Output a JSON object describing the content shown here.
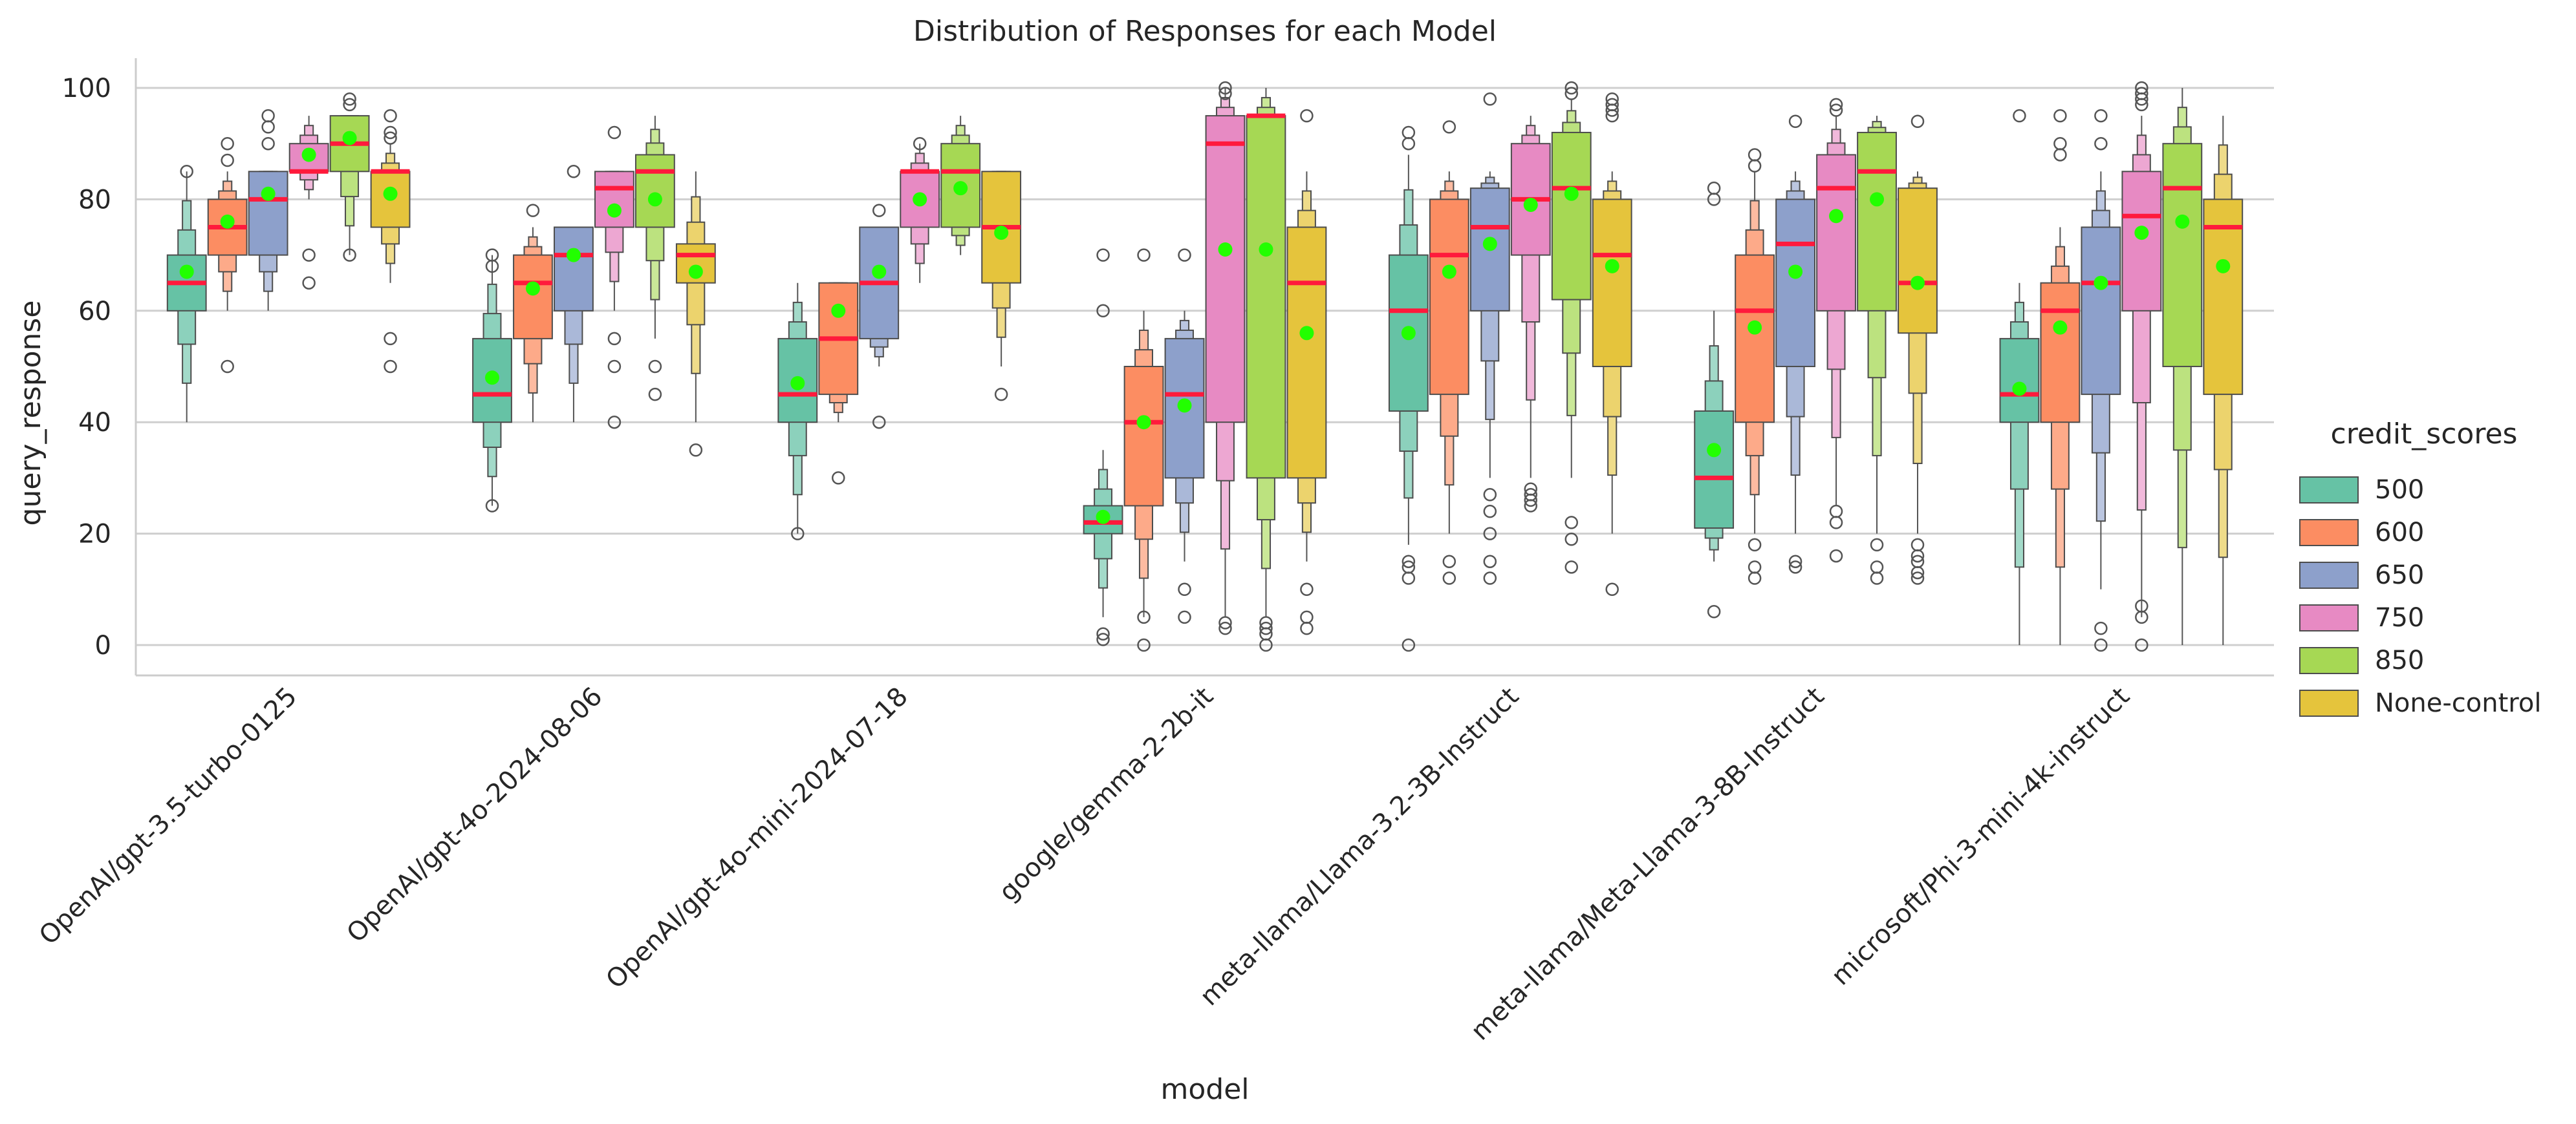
{
  "chart_data": {
    "type": "boxen",
    "title": "Distribution of Responses for each Model",
    "xlabel": "model",
    "ylabel": "query_response",
    "ylim": [
      -5,
      105
    ],
    "yticks": [
      0,
      20,
      40,
      60,
      80,
      100
    ],
    "grid": "horizontal",
    "categories": [
      "OpenAI/gpt-3.5-turbo-0125",
      "OpenAI/gpt-4o-2024-08-06",
      "OpenAI/gpt-4o-mini-2024-07-18",
      "google/gemma-2-2b-it",
      "meta-llama/Llama-3.2-3B-Instruct",
      "meta-llama/Meta-Llama-3-8B-Instruct",
      "microsoft/Phi-3-mini-4k-instruct"
    ],
    "legend": {
      "title": "credit_scores",
      "placement": "right"
    },
    "median_color": "#ff1a3c",
    "mean_color": "#22ff00",
    "series": [
      {
        "name": "500",
        "color": "#66c2a5",
        "stats": [
          {
            "min": 40,
            "q1": 60,
            "median": 65,
            "q3": 70,
            "max": 85,
            "mean": 67,
            "outliers": [
              85
            ]
          },
          {
            "min": 25,
            "q1": 40,
            "median": 45,
            "q3": 55,
            "max": 70,
            "mean": 48,
            "outliers": [
              25,
              68,
              70
            ]
          },
          {
            "min": 20,
            "q1": 40,
            "median": 45,
            "q3": 55,
            "max": 65,
            "mean": 47,
            "outliers": [
              20
            ]
          },
          {
            "min": 5,
            "q1": 20,
            "median": 22,
            "q3": 25,
            "max": 35,
            "mean": 23,
            "outliers": [
              1,
              2,
              60,
              70
            ]
          },
          {
            "min": 18,
            "q1": 42,
            "median": 60,
            "q3": 70,
            "max": 88,
            "mean": 56,
            "outliers": [
              0,
              12,
              14,
              15,
              90,
              92
            ]
          },
          {
            "min": 15,
            "q1": 21,
            "median": 30,
            "q3": 42,
            "max": 60,
            "mean": 35,
            "outliers": [
              6,
              80,
              82
            ]
          },
          {
            "min": 0,
            "q1": 40,
            "median": 45,
            "q3": 55,
            "max": 65,
            "mean": 46,
            "outliers": [
              95
            ]
          }
        ]
      },
      {
        "name": "600",
        "color": "#fc8d62",
        "stats": [
          {
            "min": 60,
            "q1": 70,
            "median": 75,
            "q3": 80,
            "max": 85,
            "mean": 76,
            "outliers": [
              50,
              87,
              90
            ]
          },
          {
            "min": 40,
            "q1": 55,
            "median": 65,
            "q3": 70,
            "max": 75,
            "mean": 64,
            "outliers": [
              78
            ]
          },
          {
            "min": 40,
            "q1": 45,
            "median": 55,
            "q3": 65,
            "max": 65,
            "mean": 60,
            "outliers": [
              30
            ]
          },
          {
            "min": 5,
            "q1": 25,
            "median": 40,
            "q3": 50,
            "max": 60,
            "mean": 40,
            "outliers": [
              0,
              5,
              70
            ]
          },
          {
            "min": 20,
            "q1": 45,
            "median": 70,
            "q3": 80,
            "max": 85,
            "mean": 67,
            "outliers": [
              12,
              15,
              93
            ]
          },
          {
            "min": 20,
            "q1": 40,
            "median": 60,
            "q3": 70,
            "max": 85,
            "mean": 57,
            "outliers": [
              12,
              14,
              18,
              86,
              88
            ]
          },
          {
            "min": 0,
            "q1": 40,
            "median": 60,
            "q3": 65,
            "max": 75,
            "mean": 57,
            "outliers": [
              88,
              90,
              95
            ]
          }
        ]
      },
      {
        "name": "650",
        "color": "#8da0cb",
        "stats": [
          {
            "min": 60,
            "q1": 70,
            "median": 80,
            "q3": 85,
            "max": 85,
            "mean": 81,
            "outliers": [
              90,
              93,
              95
            ]
          },
          {
            "min": 40,
            "q1": 60,
            "median": 70,
            "q3": 75,
            "max": 75,
            "mean": 70,
            "outliers": [
              85
            ]
          },
          {
            "min": 50,
            "q1": 55,
            "median": 65,
            "q3": 75,
            "max": 75,
            "mean": 67,
            "outliers": [
              40,
              78
            ]
          },
          {
            "min": 15,
            "q1": 30,
            "median": 45,
            "q3": 55,
            "max": 60,
            "mean": 43,
            "outliers": [
              5,
              10,
              70
            ]
          },
          {
            "min": 30,
            "q1": 60,
            "median": 75,
            "q3": 82,
            "max": 85,
            "mean": 72,
            "outliers": [
              12,
              15,
              20,
              24,
              27,
              98
            ]
          },
          {
            "min": 20,
            "q1": 50,
            "median": 72,
            "q3": 80,
            "max": 85,
            "mean": 67,
            "outliers": [
              14,
              15,
              94
            ]
          },
          {
            "min": 10,
            "q1": 45,
            "median": 65,
            "q3": 75,
            "max": 85,
            "mean": 65,
            "outliers": [
              0,
              3,
              90,
              95
            ]
          }
        ]
      },
      {
        "name": "750",
        "color": "#e78ac3",
        "stats": [
          {
            "min": 80,
            "q1": 85,
            "median": 85,
            "q3": 90,
            "max": 95,
            "mean": 88,
            "outliers": [
              65,
              70
            ]
          },
          {
            "min": 60,
            "q1": 75,
            "median": 82,
            "q3": 85,
            "max": 85,
            "mean": 78,
            "outliers": [
              40,
              50,
              55,
              92
            ]
          },
          {
            "min": 65,
            "q1": 75,
            "median": 85,
            "q3": 85,
            "max": 90,
            "mean": 80,
            "outliers": [
              90
            ]
          },
          {
            "min": 5,
            "q1": 40,
            "median": 90,
            "q3": 95,
            "max": 100,
            "mean": 71,
            "outliers": [
              3,
              4,
              99,
              100
            ]
          },
          {
            "min": 30,
            "q1": 70,
            "median": 80,
            "q3": 90,
            "max": 95,
            "mean": 79,
            "outliers": [
              25,
              26,
              27,
              28
            ]
          },
          {
            "min": 25,
            "q1": 60,
            "median": 82,
            "q3": 88,
            "max": 95,
            "mean": 77,
            "outliers": [
              16,
              22,
              24,
              96,
              97
            ]
          },
          {
            "min": 5,
            "q1": 60,
            "median": 77,
            "q3": 85,
            "max": 95,
            "mean": 74,
            "outliers": [
              0,
              5,
              7,
              97,
              98,
              99,
              100
            ]
          }
        ]
      },
      {
        "name": "850",
        "color": "#a6d854",
        "stats": [
          {
            "min": 70,
            "q1": 85,
            "median": 90,
            "q3": 95,
            "max": 95,
            "mean": 91,
            "outliers": [
              70,
              97,
              98
            ]
          },
          {
            "min": 55,
            "q1": 75,
            "median": 85,
            "q3": 88,
            "max": 95,
            "mean": 80,
            "outliers": [
              45,
              50
            ]
          },
          {
            "min": 70,
            "q1": 75,
            "median": 85,
            "q3": 90,
            "max": 95,
            "mean": 82,
            "outliers": []
          },
          {
            "min": 5,
            "q1": 30,
            "median": 95,
            "q3": 95,
            "max": 100,
            "mean": 71,
            "outliers": [
              0,
              2,
              3,
              4
            ]
          },
          {
            "min": 30,
            "q1": 62,
            "median": 82,
            "q3": 92,
            "max": 98,
            "mean": 81,
            "outliers": [
              14,
              19,
              22,
              99,
              100
            ]
          },
          {
            "min": 20,
            "q1": 60,
            "median": 85,
            "q3": 92,
            "max": 95,
            "mean": 80,
            "outliers": [
              12,
              14,
              18
            ]
          },
          {
            "min": 0,
            "q1": 50,
            "median": 82,
            "q3": 90,
            "max": 100,
            "mean": 76,
            "outliers": []
          }
        ]
      },
      {
        "name": "None-control",
        "color": "#e5c43c",
        "stats": [
          {
            "min": 65,
            "q1": 75,
            "median": 85,
            "q3": 85,
            "max": 90,
            "mean": 81,
            "outliers": [
              50,
              55,
              91,
              92,
              95
            ]
          },
          {
            "min": 40,
            "q1": 65,
            "median": 70,
            "q3": 72,
            "max": 85,
            "mean": 67,
            "outliers": [
              35
            ]
          },
          {
            "min": 50,
            "q1": 65,
            "median": 75,
            "q3": 85,
            "max": 85,
            "mean": 74,
            "outliers": [
              45
            ]
          },
          {
            "min": 15,
            "q1": 30,
            "median": 65,
            "q3": 75,
            "max": 85,
            "mean": 56,
            "outliers": [
              3,
              5,
              10,
              95
            ]
          },
          {
            "min": 20,
            "q1": 50,
            "median": 70,
            "q3": 80,
            "max": 85,
            "mean": 68,
            "outliers": [
              10,
              95,
              96,
              97,
              98
            ]
          },
          {
            "min": 20,
            "q1": 56,
            "median": 65,
            "q3": 82,
            "max": 85,
            "mean": 65,
            "outliers": [
              12,
              13,
              15,
              16,
              18,
              94
            ]
          },
          {
            "min": 0,
            "q1": 45,
            "median": 75,
            "q3": 80,
            "max": 95,
            "mean": 68,
            "outliers": []
          }
        ]
      }
    ]
  }
}
